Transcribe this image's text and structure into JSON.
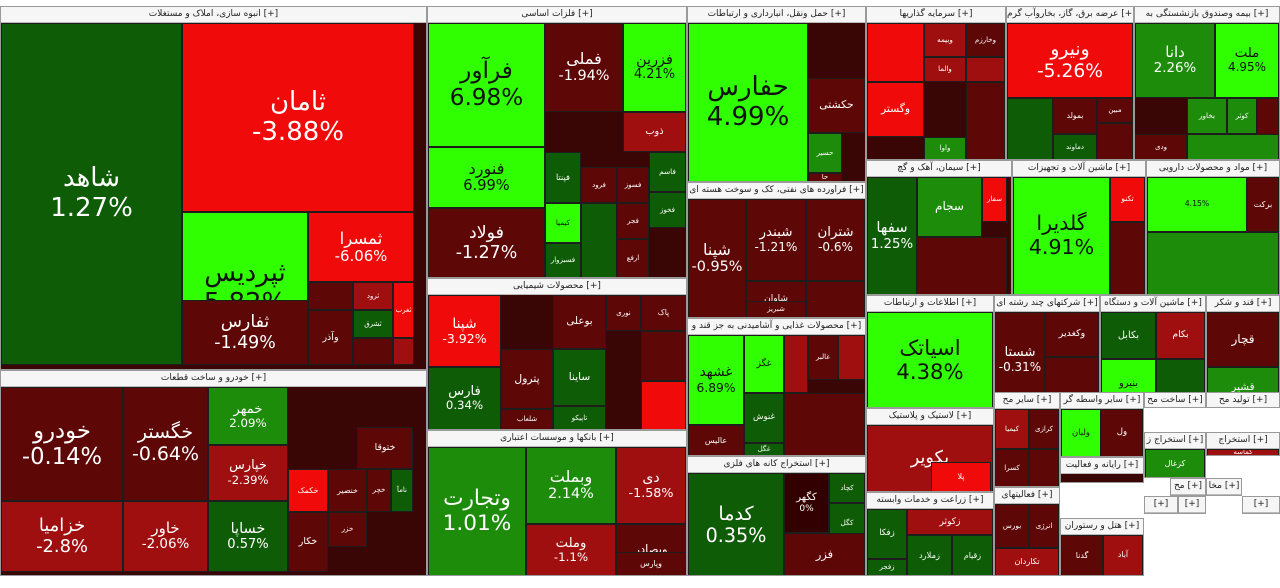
{
  "colors": {
    "g3": "#2fff00",
    "g2": "#1e8c0b",
    "g1": "#0f5c06",
    "r1": "#5e0707",
    "r2": "#9f0f0f",
    "r3": "#f00a0a",
    "n": "#330000"
  },
  "sectors": [
    {
      "title": "انبوه سازی، املاک و مستغلات [+]",
      "tiles": [
        {
          "sym": "شاهد",
          "pct": "1.27%",
          "c": "g1"
        },
        {
          "sym": "ثامان",
          "pct": "-3.88%",
          "c": "r3"
        },
        {
          "sym": "ثپردیس",
          "pct": "5.82%",
          "c": "g3"
        },
        {
          "sym": "ثفارس",
          "pct": "-1.49%",
          "c": "r1"
        },
        {
          "sym": "ثمسرا",
          "pct": "-6.06%",
          "c": "r3"
        },
        {
          "sym": "ثرود",
          "pct": "",
          "c": "r2"
        },
        {
          "sym": "وآذر",
          "pct": "",
          "c": "r1"
        },
        {
          "sym": "ثشرق",
          "pct": "",
          "c": "g1"
        },
        {
          "sym": "ثغرب",
          "pct": "",
          "c": "r3"
        },
        {
          "sym": "",
          "pct": "",
          "c": "r2"
        },
        {
          "sym": "",
          "pct": "",
          "c": "r1"
        }
      ]
    },
    {
      "title": "خودرو و ساخت قطعات [+]",
      "tiles": [
        {
          "sym": "خودرو",
          "pct": "-0.14%",
          "c": "r1"
        },
        {
          "sym": "خگستر",
          "pct": "-0.64%",
          "c": "r1"
        },
        {
          "sym": "خساپا",
          "pct": "0.57%",
          "c": "g1"
        },
        {
          "sym": "خزامیا",
          "pct": "-2.8%",
          "c": "r2"
        },
        {
          "sym": "خاور",
          "pct": "-2.06%",
          "c": "r2"
        },
        {
          "sym": "خمهر",
          "pct": "2.09%",
          "c": "g2"
        },
        {
          "sym": "خپارس",
          "pct": "-2.39%",
          "c": "r2"
        },
        {
          "sym": "ختوقا",
          "pct": "",
          "c": "r1"
        },
        {
          "sym": "خکمک",
          "pct": "",
          "c": "r3"
        },
        {
          "sym": "خنصير",
          "pct": "",
          "c": "r1"
        },
        {
          "sym": "خچر",
          "pct": "",
          "c": "r1"
        },
        {
          "sym": "نامآ",
          "pct": "",
          "c": "g1"
        },
        {
          "sym": "خزر",
          "pct": "",
          "c": "r1"
        },
        {
          "sym": "خکار",
          "pct": "",
          "c": "r1"
        }
      ]
    },
    {
      "title": "فلزات اساسی [+]",
      "tiles": [
        {
          "sym": "فرآور",
          "pct": "6.98%",
          "c": "g3"
        },
        {
          "sym": "فملی",
          "pct": "-1.94%",
          "c": "r1"
        },
        {
          "sym": "فزرین",
          "pct": "4.21%",
          "c": "g3"
        },
        {
          "sym": "فنورد",
          "pct": "6.99%",
          "c": "g3"
        },
        {
          "sym": "فولاد",
          "pct": "-1.27%",
          "c": "r1"
        },
        {
          "sym": "ذوب",
          "pct": "",
          "c": "r2"
        },
        {
          "sym": "فاسم",
          "pct": "",
          "c": "g1"
        },
        {
          "sym": "فپنتا",
          "pct": "",
          "c": "g1"
        },
        {
          "sym": "فرود",
          "pct": "",
          "c": "r1"
        },
        {
          "sym": "فسوز",
          "pct": "",
          "c": "r1"
        },
        {
          "sym": "فخوز",
          "pct": "",
          "c": "g1"
        },
        {
          "sym": "کیمیا",
          "pct": "",
          "c": "g3"
        },
        {
          "sym": "فسبزوار",
          "pct": "",
          "c": "g1"
        },
        {
          "sym": "فجر",
          "pct": "",
          "c": "r1"
        },
        {
          "sym": "ارفع",
          "pct": "",
          "c": "r1"
        }
      ]
    },
    {
      "title": "محصولات شیمیایی [+]",
      "tiles": [
        {
          "sym": "شپنا",
          "pct": "-3.92%",
          "c": "r3"
        },
        {
          "sym": "فارس",
          "pct": "0.34%",
          "c": "g1"
        },
        {
          "sym": "بوعلی",
          "pct": "",
          "c": "r1"
        },
        {
          "sym": "پترول",
          "pct": "",
          "c": "r1"
        },
        {
          "sym": "شلعاب",
          "pct": "",
          "c": "r1"
        },
        {
          "sym": "نوری",
          "pct": "",
          "c": "r1"
        },
        {
          "sym": "ساینا",
          "pct": "",
          "c": "g1"
        },
        {
          "sym": "تاپیکو",
          "pct": "",
          "c": "g1"
        },
        {
          "sym": "پاک",
          "pct": "",
          "c": "r1"
        }
      ]
    },
    {
      "title": "بانکها و موسسات اعتباری [+]",
      "tiles": [
        {
          "sym": "وتجارت",
          "pct": "1.01%",
          "c": "g2"
        },
        {
          "sym": "وبملت",
          "pct": "2.14%",
          "c": "g2"
        },
        {
          "sym": "وبصادر",
          "pct": "",
          "c": "r1"
        },
        {
          "sym": "وپارس",
          "pct": "",
          "c": "r1"
        },
        {
          "sym": "وملت",
          "pct": "-1.1%",
          "c": "r2"
        },
        {
          "sym": "دی",
          "pct": "-1.58%",
          "c": "r2"
        }
      ]
    },
    {
      "title": "حمل ونقل، انبارداری و ارتباطات [+]",
      "tiles": [
        {
          "sym": "حفارس",
          "pct": "4.99%",
          "c": "g3"
        },
        {
          "sym": "حکشتی",
          "pct": "",
          "c": "r1"
        },
        {
          "sym": "حسیر",
          "pct": "",
          "c": "g2"
        },
        {
          "sym": "حآ",
          "pct": "",
          "c": "r1"
        }
      ]
    },
    {
      "title": "فراورده های نفتی، کک و سوخت هسته ای [+]",
      "tiles": [
        {
          "sym": "شپنا",
          "pct": "-0.95%",
          "c": "r1"
        },
        {
          "sym": "شبندر",
          "pct": "-1.21%",
          "c": "r1"
        },
        {
          "sym": "شتران",
          "pct": "-0.6%",
          "c": "r1"
        },
        {
          "sym": "شاوان",
          "pct": "",
          "c": "r1"
        },
        {
          "sym": "شبریز",
          "pct": "",
          "c": "r1"
        }
      ]
    },
    {
      "title": "محصولات غذایی و آشامیدنی به جز قند و [+]",
      "tiles": [
        {
          "sym": "غشهد",
          "pct": "6.89%",
          "c": "g3"
        },
        {
          "sym": "غگز",
          "pct": "",
          "c": "g3"
        },
        {
          "sym": "غالبر",
          "pct": "",
          "c": "r1"
        },
        {
          "sym": "غنوش",
          "pct": "",
          "c": "g1"
        },
        {
          "sym": "عالیس",
          "pct": "",
          "c": "r1"
        },
        {
          "sym": "غگل",
          "pct": "",
          "c": "g1"
        }
      ]
    },
    {
      "title": "استخراج کانه های فلزی [+]",
      "tiles": [
        {
          "sym": "کدما",
          "pct": "0.35%",
          "c": "g1"
        },
        {
          "sym": "کگهر",
          "pct": "0%",
          "c": "n"
        },
        {
          "sym": "کچاد",
          "pct": "",
          "c": "g1"
        },
        {
          "sym": "کگل",
          "pct": "",
          "c": "g1"
        },
        {
          "sym": "فزر",
          "pct": "",
          "c": "r1"
        }
      ]
    },
    {
      "title": "سرمایه گذاریها [+]",
      "tiles": [
        {
          "sym": "وبیمه",
          "pct": "",
          "c": "r2"
        },
        {
          "sym": "وخارزم",
          "pct": "",
          "c": "r1"
        },
        {
          "sym": "والما",
          "pct": "",
          "c": "r2"
        },
        {
          "sym": "وگستر",
          "pct": "",
          "c": "r3"
        },
        {
          "sym": "واوا",
          "pct": "",
          "c": "g2"
        }
      ]
    },
    {
      "title": "عرضه برق، گاز، بخاروآب گرم [+]",
      "tiles": [
        {
          "sym": "ونیرو",
          "pct": "-5.26%",
          "c": "r3"
        },
        {
          "sym": "بمولد",
          "pct": "",
          "c": "r1"
        },
        {
          "sym": "مبین",
          "pct": "",
          "c": "r1"
        },
        {
          "sym": "دماوند",
          "pct": "",
          "c": "g1"
        }
      ]
    },
    {
      "title": "بیمه وصندوق بازنشستگی به [+]",
      "tiles": [
        {
          "sym": "دانا",
          "pct": "2.26%",
          "c": "g2"
        },
        {
          "sym": "ملت",
          "pct": "4.95%",
          "c": "g3"
        },
        {
          "sym": "بخاور",
          "pct": "",
          "c": "g2"
        },
        {
          "sym": "کوثر",
          "pct": "",
          "c": "g2"
        },
        {
          "sym": "ودی",
          "pct": "",
          "c": "r1"
        }
      ]
    },
    {
      "title": "سیمان، آهک و گچ [+]",
      "tiles": [
        {
          "sym": "سفها",
          "pct": "1.25%",
          "c": "g1"
        },
        {
          "sym": "سجام",
          "pct": "",
          "c": "g2"
        },
        {
          "sym": "سفار",
          "pct": "",
          "c": "r3"
        }
      ]
    },
    {
      "title": "ماشین آلات و تجهیزات [+]",
      "tiles": [
        {
          "sym": "گلدیرا",
          "pct": "4.91%",
          "c": "g3"
        },
        {
          "sym": "تکنو",
          "pct": "",
          "c": "r3"
        }
      ]
    },
    {
      "title": "مواد و محصولات دارویی [+]",
      "tiles": [
        {
          "sym": "برکت",
          "pct": "",
          "c": "r1"
        },
        {
          "sym": "",
          "pct": "4.15%",
          "c": "g3"
        }
      ]
    },
    {
      "title": "اطلاعات و ارتباطات [+]",
      "tiles": [
        {
          "sym": "اسیاتک",
          "pct": "4.38%",
          "c": "g3"
        }
      ]
    },
    {
      "title": "شرکتهای چند رشته ای [+]",
      "tiles": [
        {
          "sym": "شستا",
          "pct": "-0.31%",
          "c": "r1"
        },
        {
          "sym": "وکغدیر",
          "pct": "",
          "c": "r1"
        }
      ]
    },
    {
      "title": "ماشین آلات و دستگاه [+]",
      "tiles": [
        {
          "sym": "بکابل",
          "pct": "",
          "c": "g1"
        },
        {
          "sym": "بکام",
          "pct": "",
          "c": "r2"
        },
        {
          "sym": "بنیرو",
          "pct": "",
          "c": "g3"
        }
      ]
    },
    {
      "title": "قند و شکر [+]",
      "tiles": [
        {
          "sym": "قچار",
          "pct": "",
          "c": "r1"
        },
        {
          "sym": "قشیر",
          "pct": "",
          "c": "g2"
        }
      ]
    },
    {
      "title": "لاستیک و پلاستیک [+]",
      "tiles": [
        {
          "sym": "پکویر",
          "pct": "",
          "c": "r2"
        },
        {
          "sym": "پلا",
          "pct": "",
          "c": "r3"
        }
      ]
    },
    {
      "title": "زراعت و خدمات وابسته [+]",
      "tiles": [
        {
          "sym": "زفکا",
          "pct": "",
          "c": "g1"
        },
        {
          "sym": "زفجر",
          "pct": "",
          "c": "g1"
        },
        {
          "sym": "زکوثر",
          "pct": "",
          "c": "r2"
        },
        {
          "sym": "زملارد",
          "pct": "",
          "c": "g1"
        },
        {
          "sym": "زقیام",
          "pct": "",
          "c": "g1"
        }
      ]
    },
    {
      "title": "سایر مح [+]",
      "tiles": [
        {
          "sym": "کیمیا",
          "pct": "",
          "c": "r2"
        },
        {
          "sym": "کسرا",
          "pct": "",
          "c": "r1"
        },
        {
          "sym": "کرازی",
          "pct": "",
          "c": "r1"
        }
      ]
    },
    {
      "title": "سایر واسطه گر [+]",
      "tiles": [
        {
          "sym": "ولبان",
          "pct": "",
          "c": "g3"
        },
        {
          "sym": "ول",
          "pct": "",
          "c": "r1"
        }
      ]
    },
    {
      "title": "رایانه و فعالیت [+]",
      "tiles": []
    },
    {
      "title": "فعالیتهای [+]",
      "tiles": [
        {
          "sym": "بورس",
          "pct": "",
          "c": "r1"
        },
        {
          "sym": "انرژی",
          "pct": "",
          "c": "r1"
        },
        {
          "sym": "تکاردان",
          "pct": "",
          "c": "r2"
        }
      ]
    },
    {
      "title": "هتل و رستوران [+]",
      "tiles": [
        {
          "sym": "گدنا",
          "pct": "",
          "c": "r1"
        },
        {
          "sym": "آباد",
          "pct": "",
          "c": "r2"
        }
      ]
    },
    {
      "title": "ساخت مح [+]",
      "tiles": []
    },
    {
      "title": "تولید مح [+]",
      "tiles": [
        {
          "sym": "مادیرا",
          "pct": "",
          "c": "r2"
        }
      ]
    },
    {
      "title": "استخراج [+]",
      "tiles": [
        {
          "sym": "کماسه",
          "pct": "",
          "c": "r2"
        }
      ]
    },
    {
      "title": "استخراج ز [+]",
      "tiles": [
        {
          "sym": "کزغال",
          "pct": "",
          "c": "g2"
        }
      ]
    },
    {
      "title": "مخا [+]",
      "tiles": []
    },
    {
      "title": "مح [+]",
      "tiles": []
    },
    {
      "title": "[+]",
      "tiles": [
        {
          "sym": "وملی",
          "pct": "",
          "c": "r1"
        }
      ]
    },
    {
      "title": "[+]",
      "tiles": [
        {
          "sym": "لیار",
          "pct": "",
          "c": "r1"
        }
      ]
    },
    {
      "title": "[+]",
      "tiles": []
    },
    {
      "title": "[+]",
      "tiles": []
    }
  ]
}
